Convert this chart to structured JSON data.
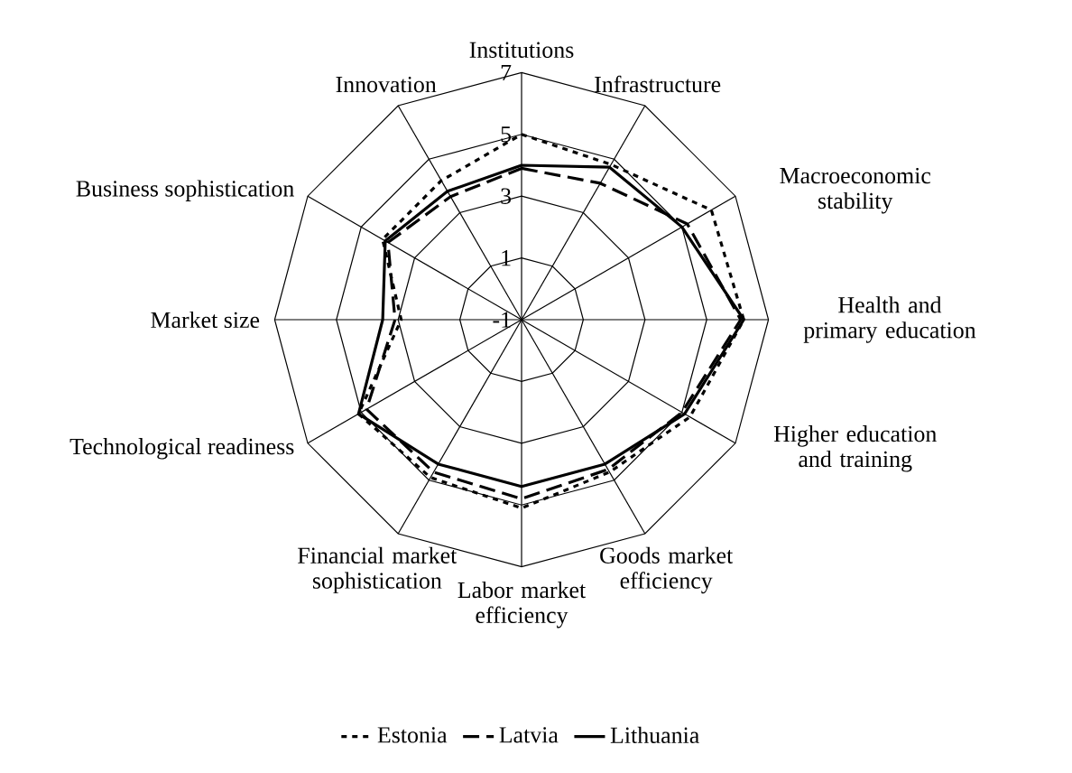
{
  "chart_data": {
    "type": "radar",
    "categories": [
      "Institutions",
      "Infrastructure",
      "Macroeconomic stability",
      "Health and primary education",
      "Higher education and training",
      "Goods market efficiency",
      "Labor market efficiency",
      "Financial market sophistication",
      "Technological readiness",
      "Market size",
      "Business sophistication",
      "Innovation"
    ],
    "series": [
      {
        "name": "Estonia",
        "color": "#000000",
        "line_style": "dotted",
        "values": [
          5.0,
          4.8,
          6.1,
          6.2,
          5.3,
          4.7,
          5.1,
          4.9,
          5.1,
          2.9,
          4.2,
          4.2
        ]
      },
      {
        "name": "Latvia",
        "color": "#000000",
        "line_style": "dashed",
        "values": [
          3.9,
          4.1,
          5.2,
          6.1,
          5.0,
          4.6,
          4.8,
          4.7,
          4.8,
          3.1,
          4.0,
          3.6
        ]
      },
      {
        "name": "Lithuania",
        "color": "#000000",
        "line_style": "solid",
        "values": [
          4.0,
          4.7,
          5.0,
          6.2,
          5.1,
          4.4,
          4.4,
          4.4,
          5.1,
          3.5,
          4.1,
          3.8
        ]
      }
    ],
    "ylim": [
      -1,
      7
    ],
    "yticks": [
      -1,
      1,
      3,
      5,
      7
    ],
    "grid": true,
    "legend": "bottom"
  }
}
